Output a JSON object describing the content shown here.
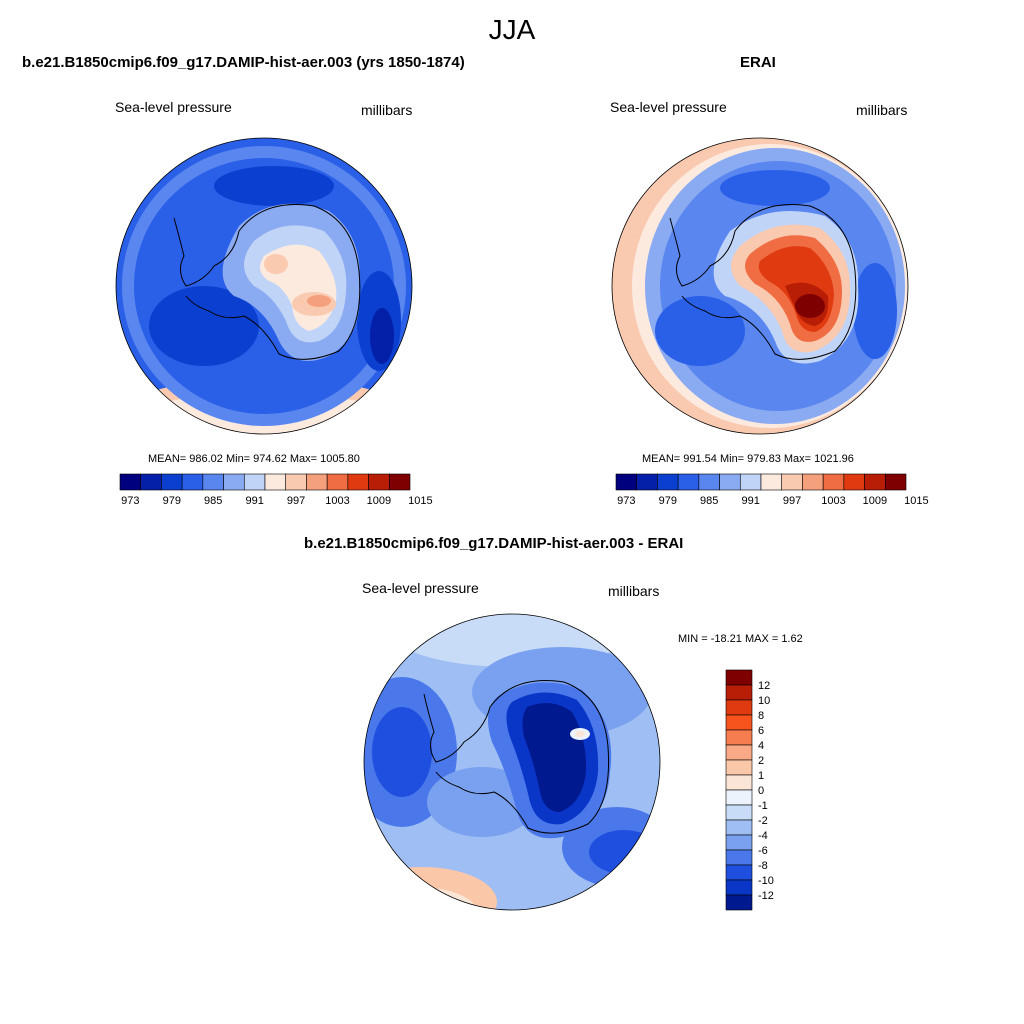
{
  "figure_title": "JJA",
  "panels": {
    "model": {
      "title": "b.e21.B1850cmip6.f09_g17.DAMIP-hist-aer.003 (yrs 1850-1874)",
      "left_label": "Sea-level pressure",
      "right_label": "millibars",
      "stats": "MEAN= 986.02  Min= 974.62  Max= 1005.80"
    },
    "obs": {
      "title": "ERAI",
      "left_label": "Sea-level pressure",
      "right_label": "millibars",
      "stats": "MEAN= 991.54  Min= 979.83  Max= 1021.96"
    },
    "diff": {
      "title": "b.e21.B1850cmip6.f09_g17.DAMIP-hist-aer.003 - ERAI",
      "left_label": "Sea-level pressure",
      "right_label": "millibars",
      "stats": "MIN = -18.21 MAX =   1.62"
    }
  },
  "colorbar_abs": {
    "tick_labels": [
      "973",
      "979",
      "985",
      "991",
      "997",
      "1003",
      "1009",
      "1015"
    ],
    "colors": [
      "#00007f",
      "#0520a8",
      "#0b3fd0",
      "#2a5fe8",
      "#5a86f0",
      "#8aaaf2",
      "#c0d4f8",
      "#fdeadf",
      "#f9c9b0",
      "#f5a07c",
      "#f06d43",
      "#e03a10",
      "#b81d05",
      "#7f0000"
    ]
  },
  "colorbar_diff": {
    "tick_labels": [
      "12",
      "10",
      "8",
      "6",
      "4",
      "2",
      "1",
      "0",
      "-1",
      "-2",
      "-4",
      "-6",
      "-8",
      "-10",
      "-12"
    ],
    "colors": [
      "#7f0000",
      "#b81d05",
      "#e03a10",
      "#f6541c",
      "#f57d50",
      "#f9a986",
      "#fbc7a9",
      "#fbe5d6",
      "#ecf3fc",
      "#c8dcf8",
      "#9ebef4",
      "#7aa1ef",
      "#4a78ea",
      "#1f4fdf",
      "#0a36c8",
      "#00198f"
    ]
  }
}
